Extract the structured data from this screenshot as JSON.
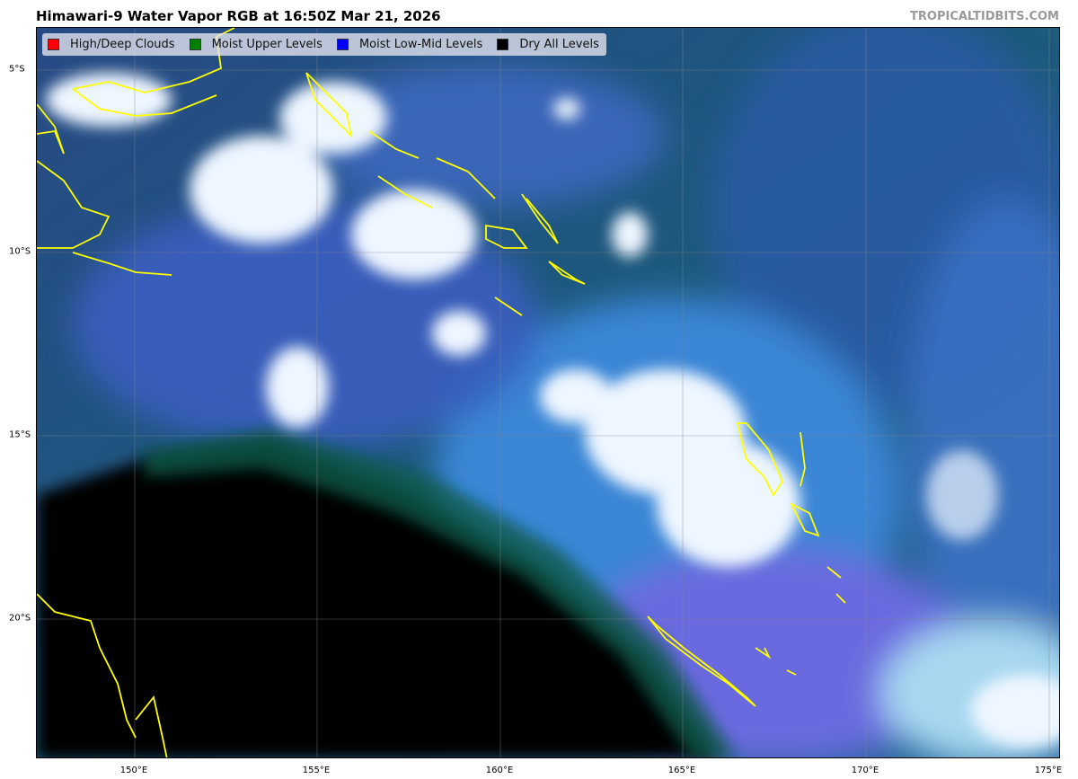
{
  "header": {
    "title": "Himawari-9 Water Vapor RGB at 16:50Z Mar 21, 2026",
    "credit": "TROPICALTIDBITS.COM"
  },
  "legend": [
    {
      "label": "High/Deep Clouds",
      "color": "#ff0000"
    },
    {
      "label": "Moist Upper Levels",
      "color": "#008000"
    },
    {
      "label": "Moist Low-Mid Levels",
      "color": "#0000ff"
    },
    {
      "label": "Dry All Levels",
      "color": "#000000"
    }
  ],
  "axes": {
    "x_ticks": [
      "150°E",
      "155°E",
      "160°E",
      "165°E",
      "170°E",
      "175°E"
    ],
    "y_ticks": [
      "5°S",
      "10°S",
      "15°S",
      "20°S"
    ]
  },
  "colors": {
    "coastline": "#ffff00",
    "gridline": "#888888"
  }
}
